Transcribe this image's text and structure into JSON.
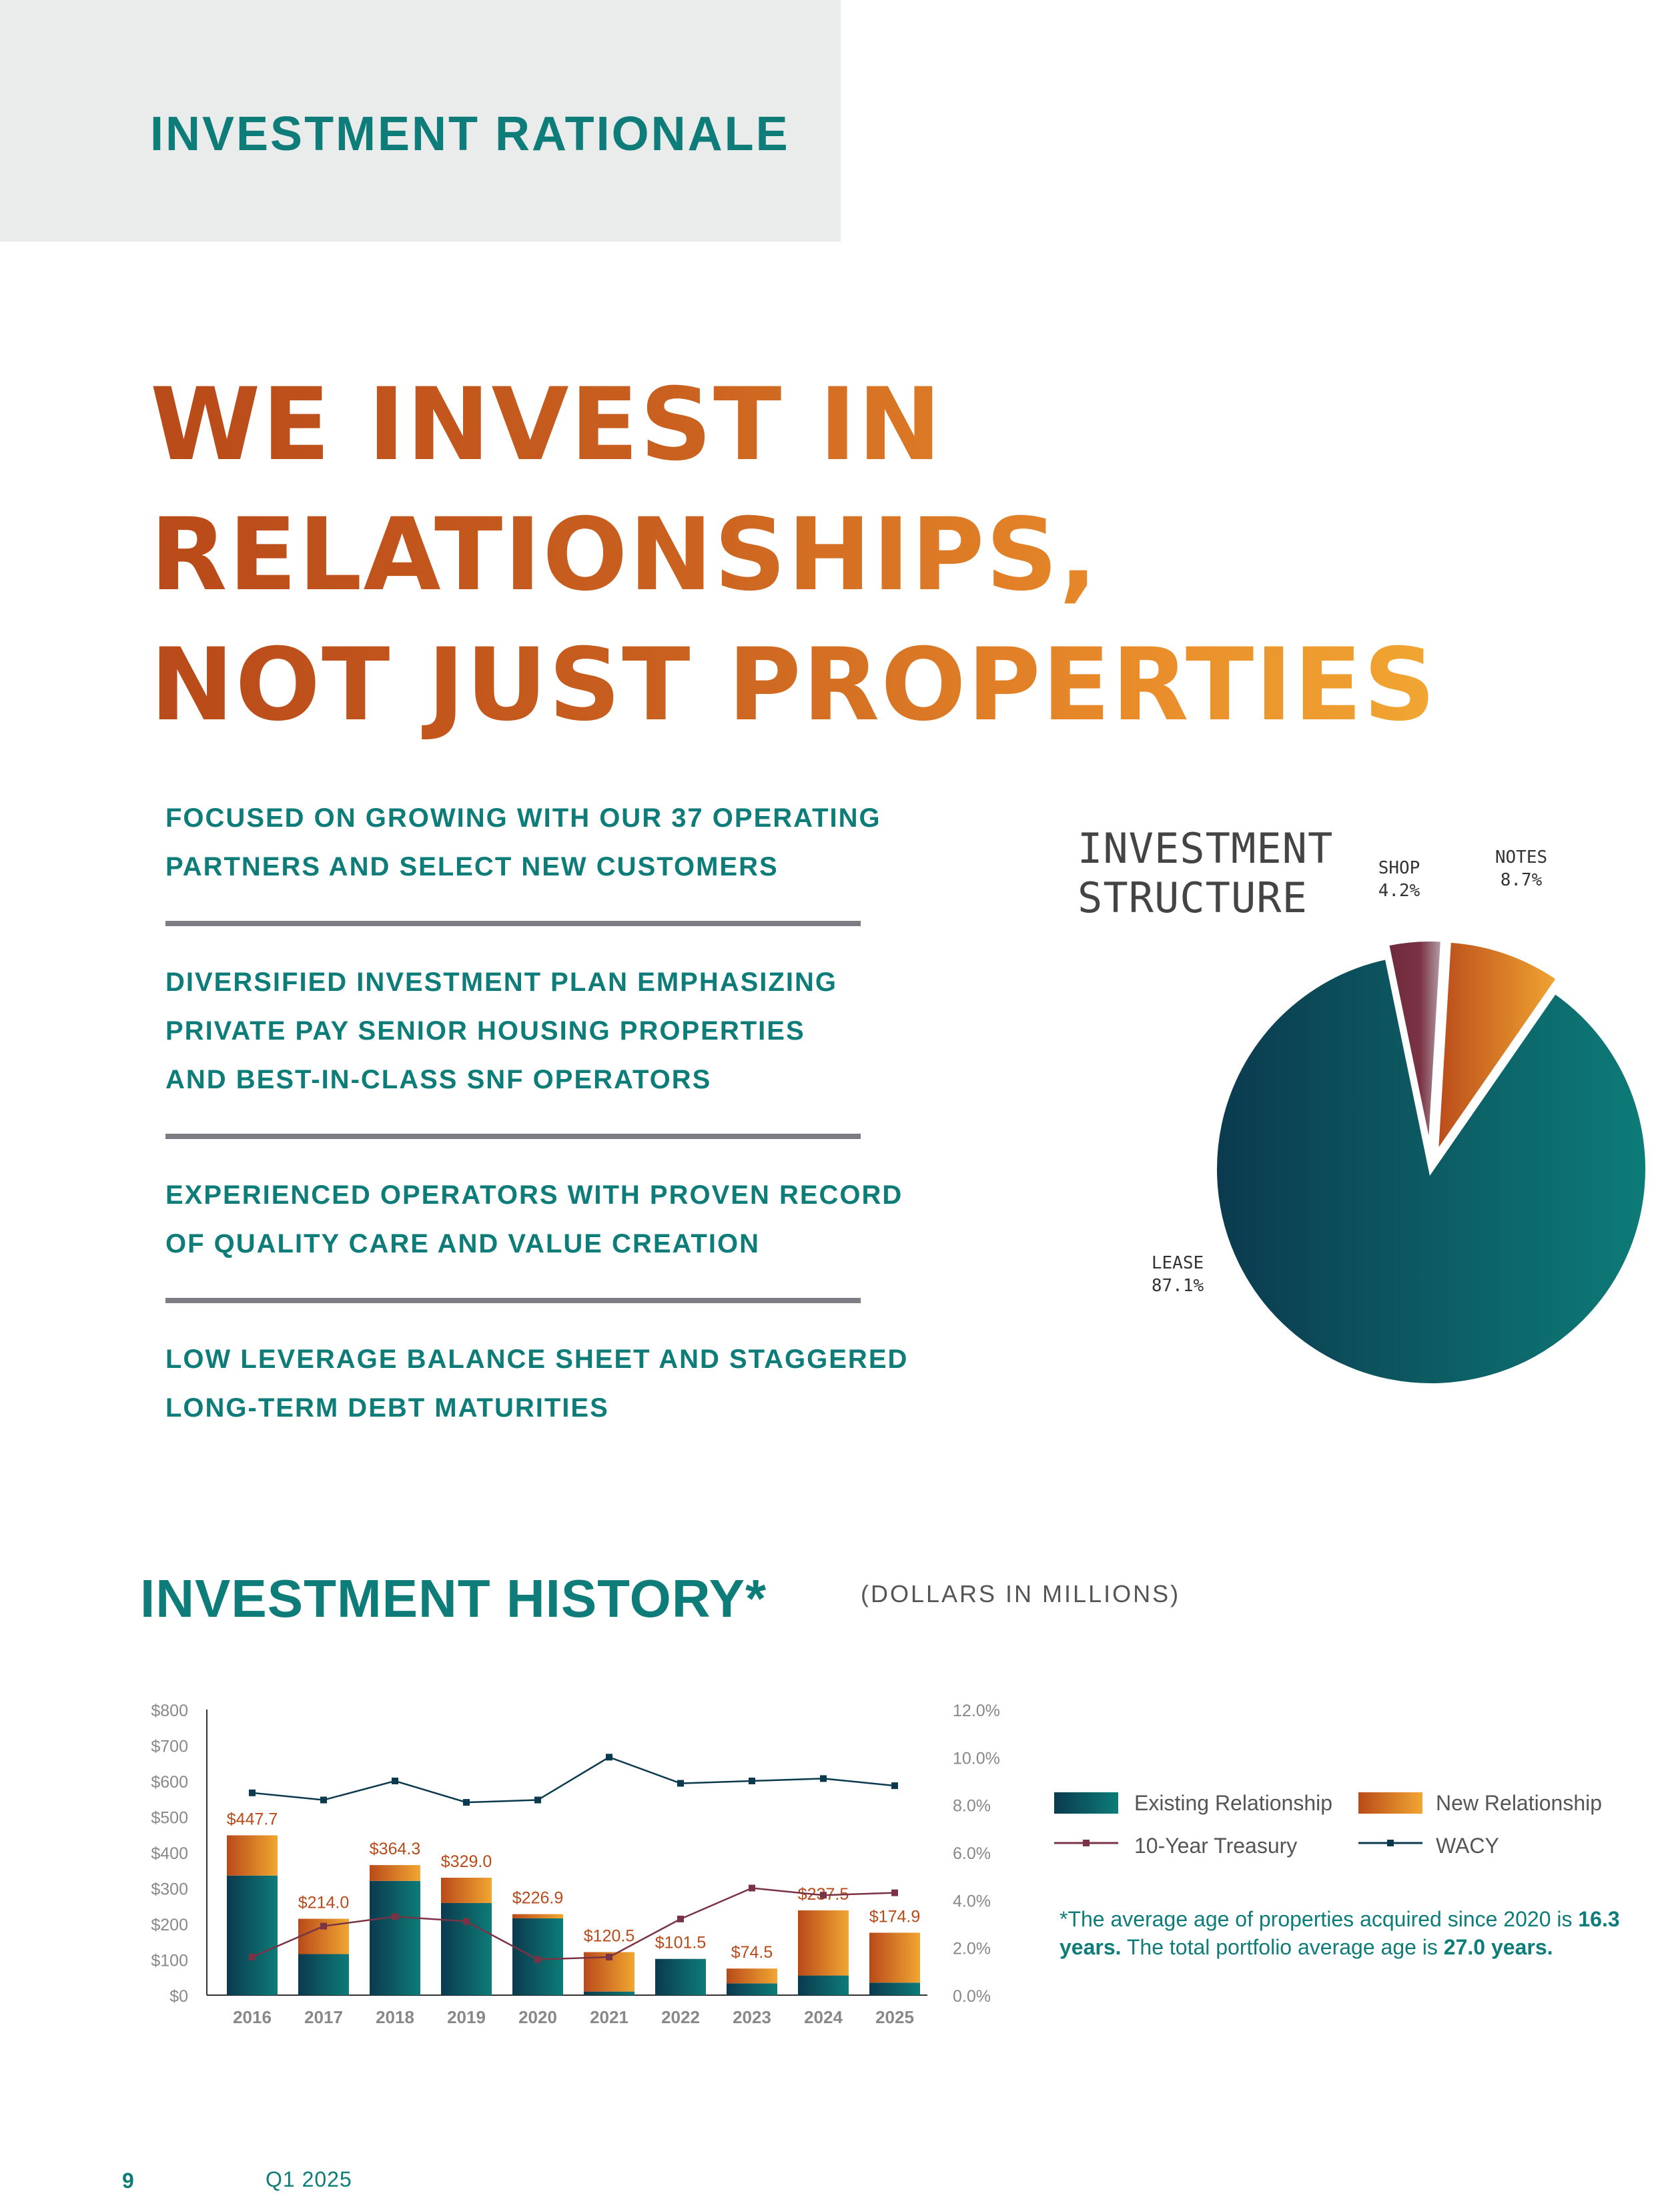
{
  "header": {
    "section_title": "INVESTMENT RATIONALE"
  },
  "headline": {
    "lines": [
      "WE INVEST IN",
      "RELATIONSHIPS,",
      "NOT JUST PROPERTIES"
    ]
  },
  "bullets": [
    {
      "lines": [
        "FOCUSED ON GROWING WITH OUR 37 OPERATING",
        "PARTNERS AND SELECT NEW CUSTOMERS"
      ]
    },
    {
      "lines": [
        "DIVERSIFIED INVESTMENT PLAN EMPHASIZING",
        "PRIVATE PAY SENIOR HOUSING PROPERTIES",
        "AND BEST-IN-CLASS SNF OPERATORS"
      ]
    },
    {
      "lines": [
        "EXPERIENCED OPERATORS WITH PROVEN RECORD",
        "OF QUALITY CARE AND VALUE CREATION"
      ]
    },
    {
      "lines": [
        "LOW LEVERAGE BALANCE SHEET AND STAGGERED",
        "LONG-TERM DEBT MATURITIES"
      ]
    }
  ],
  "history": {
    "title": "INVESTMENT HISTORY*",
    "subtitle": "(DOLLARS IN MILLIONS)",
    "legend": {
      "existing": "Existing Relationship",
      "new": "New Relationship",
      "treasury": "10-Year Treasury",
      "wacy": "WACY"
    },
    "footnote": {
      "part1": "*The average age of properties acquired since 2020 is ",
      "part2": "16.3 years.",
      "part3": "  The total portfolio average age is ",
      "part4": "27.0 years."
    }
  },
  "footer": {
    "page_number": "9",
    "quarter": "Q1 2025"
  },
  "colors": {
    "teal": "#0e7c78",
    "orange": "#e88a2a",
    "rust": "#b94a1a",
    "maroon": "#7a3344",
    "navy": "#0b3a4e"
  },
  "chart_data": [
    {
      "type": "pie",
      "title": [
        "INVESTMENT",
        "STRUCTURE"
      ],
      "slices": [
        {
          "label": "LEASE",
          "value": 87.1,
          "display": "87.1%"
        },
        {
          "label": "SHOP",
          "value": 4.2,
          "display": "4.2%"
        },
        {
          "label": "NOTES",
          "value": 8.7,
          "display": "8.7%"
        }
      ]
    },
    {
      "type": "bar",
      "stacked": true,
      "categories": [
        "2016",
        "2017",
        "2018",
        "2019",
        "2020",
        "2021",
        "2022",
        "2023",
        "2024",
        "2025"
      ],
      "series": [
        {
          "name": "Existing Relationship",
          "values": [
            335,
            115,
            320,
            258,
            215,
            10,
            101.5,
            33,
            55,
            35
          ]
        },
        {
          "name": "New Relationship",
          "values": [
            112.7,
            99,
            44.3,
            71,
            11.9,
            110.5,
            0,
            41.5,
            182.5,
            139.9
          ]
        }
      ],
      "totals": [
        "$447.7",
        "$214.0",
        "$364.3",
        "$329.0",
        "$226.9",
        "$120.5",
        "$101.5",
        "$74.5",
        "$237.5",
        "$174.9"
      ],
      "lines": [
        {
          "name": "10-Year Treasury",
          "axis": "right",
          "values": [
            1.6,
            2.9,
            3.3,
            3.1,
            1.5,
            1.6,
            3.2,
            4.5,
            4.2,
            4.3
          ]
        },
        {
          "name": "WACY",
          "axis": "right",
          "values": [
            8.5,
            8.2,
            9.0,
            8.1,
            8.2,
            10.0,
            8.9,
            9.0,
            9.1,
            8.8
          ]
        }
      ],
      "y_left": {
        "ticks": [
          "$0",
          "$100",
          "$200",
          "$300",
          "$400",
          "$500",
          "$600",
          "$700",
          "$800"
        ],
        "lim": [
          0,
          800
        ]
      },
      "y_right": {
        "ticks": [
          "0.0%",
          "2.0%",
          "4.0%",
          "6.0%",
          "8.0%",
          "10.0%",
          "12.0%"
        ],
        "lim": [
          0,
          12
        ]
      },
      "legend": "right"
    }
  ]
}
